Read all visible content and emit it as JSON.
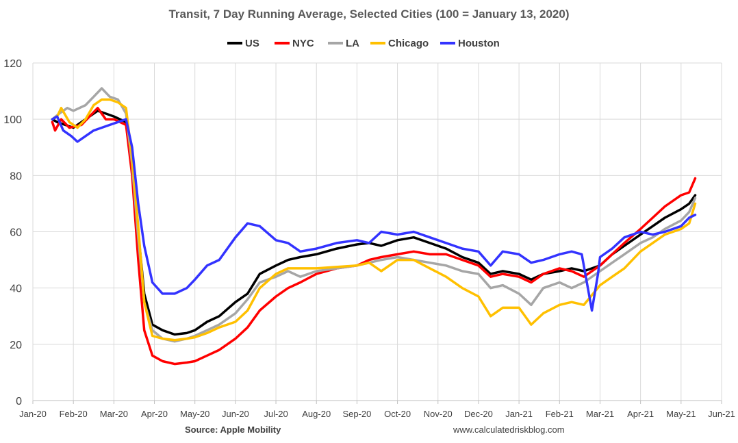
{
  "chart_data": {
    "type": "line",
    "title": "Transit, 7 Day Running Average, Selected Cities (100 = January 13, 2020)",
    "ylim": [
      0,
      120
    ],
    "yticks": [
      0,
      20,
      40,
      60,
      80,
      100,
      120
    ],
    "xlim": [
      0,
      17
    ],
    "xtick_labels": [
      "Jan-20",
      "Feb-20",
      "Mar-20",
      "Apr-20",
      "May-20",
      "Jun-20",
      "Jul-20",
      "Aug-20",
      "Sep-20",
      "Oct-20",
      "Nov-20",
      "Dec-20",
      "Jan-21",
      "Feb-21",
      "Mar-21",
      "Apr-21",
      "May-21",
      "Jun-21"
    ],
    "grid": true,
    "legend_position": "top",
    "source": "Source: Apple Mobility",
    "website": "www.calculatedriskblog.com",
    "series": [
      {
        "name": "US",
        "color": "#000000",
        "points": [
          [
            0.48,
            100
          ],
          [
            0.6,
            99
          ],
          [
            0.8,
            98
          ],
          [
            1.0,
            97
          ],
          [
            1.3,
            100
          ],
          [
            1.6,
            103
          ],
          [
            1.8,
            102
          ],
          [
            2.0,
            101
          ],
          [
            2.3,
            99
          ],
          [
            2.45,
            85
          ],
          [
            2.6,
            60
          ],
          [
            2.75,
            38
          ],
          [
            2.95,
            27
          ],
          [
            3.2,
            25
          ],
          [
            3.5,
            23.5
          ],
          [
            3.8,
            24
          ],
          [
            4.0,
            25
          ],
          [
            4.3,
            28
          ],
          [
            4.6,
            30
          ],
          [
            5.0,
            35
          ],
          [
            5.3,
            38
          ],
          [
            5.6,
            45
          ],
          [
            6.0,
            48
          ],
          [
            6.3,
            50
          ],
          [
            6.6,
            51
          ],
          [
            7.0,
            52
          ],
          [
            7.5,
            54
          ],
          [
            8.0,
            55.5
          ],
          [
            8.3,
            56
          ],
          [
            8.6,
            55
          ],
          [
            9.0,
            57
          ],
          [
            9.4,
            58
          ],
          [
            9.8,
            56
          ],
          [
            10.2,
            54
          ],
          [
            10.6,
            51
          ],
          [
            11.0,
            49
          ],
          [
            11.3,
            45
          ],
          [
            11.6,
            46
          ],
          [
            12.0,
            45
          ],
          [
            12.3,
            43
          ],
          [
            12.6,
            45
          ],
          [
            13.0,
            46
          ],
          [
            13.3,
            47
          ],
          [
            13.6,
            46
          ],
          [
            14.0,
            48
          ],
          [
            14.3,
            52
          ],
          [
            14.6,
            55
          ],
          [
            15.0,
            59
          ],
          [
            15.3,
            62
          ],
          [
            15.6,
            65
          ],
          [
            16.0,
            68
          ],
          [
            16.2,
            70
          ],
          [
            16.35,
            73
          ]
        ]
      },
      {
        "name": "NYC",
        "color": "#ff0000",
        "points": [
          [
            0.48,
            99
          ],
          [
            0.55,
            96
          ],
          [
            0.7,
            100
          ],
          [
            0.9,
            97
          ],
          [
            1.2,
            98
          ],
          [
            1.4,
            101
          ],
          [
            1.6,
            104
          ],
          [
            1.8,
            100
          ],
          [
            2.0,
            100
          ],
          [
            2.3,
            98
          ],
          [
            2.45,
            80
          ],
          [
            2.6,
            50
          ],
          [
            2.75,
            25
          ],
          [
            2.95,
            16
          ],
          [
            3.2,
            14
          ],
          [
            3.5,
            13
          ],
          [
            3.8,
            13.5
          ],
          [
            4.0,
            14
          ],
          [
            4.3,
            16
          ],
          [
            4.6,
            18
          ],
          [
            5.0,
            22
          ],
          [
            5.3,
            26
          ],
          [
            5.6,
            32
          ],
          [
            6.0,
            37
          ],
          [
            6.3,
            40
          ],
          [
            6.6,
            42
          ],
          [
            7.0,
            45
          ],
          [
            7.5,
            47
          ],
          [
            8.0,
            48
          ],
          [
            8.3,
            50
          ],
          [
            8.6,
            51
          ],
          [
            9.0,
            52
          ],
          [
            9.4,
            53
          ],
          [
            9.8,
            52
          ],
          [
            10.2,
            52
          ],
          [
            10.6,
            50
          ],
          [
            11.0,
            48
          ],
          [
            11.3,
            44
          ],
          [
            11.6,
            45
          ],
          [
            12.0,
            44
          ],
          [
            12.3,
            42
          ],
          [
            12.6,
            45
          ],
          [
            13.0,
            47
          ],
          [
            13.3,
            46
          ],
          [
            13.6,
            44
          ],
          [
            14.0,
            48
          ],
          [
            14.3,
            52
          ],
          [
            14.6,
            56
          ],
          [
            15.0,
            61
          ],
          [
            15.3,
            65
          ],
          [
            15.6,
            69
          ],
          [
            16.0,
            73
          ],
          [
            16.2,
            74
          ],
          [
            16.35,
            79
          ]
        ]
      },
      {
        "name": "LA",
        "color": "#a6a6a6",
        "points": [
          [
            0.48,
            100
          ],
          [
            0.65,
            102
          ],
          [
            0.85,
            104
          ],
          [
            1.0,
            103
          ],
          [
            1.3,
            105
          ],
          [
            1.5,
            108
          ],
          [
            1.7,
            111
          ],
          [
            1.9,
            108
          ],
          [
            2.1,
            107
          ],
          [
            2.3,
            102
          ],
          [
            2.45,
            84
          ],
          [
            2.6,
            58
          ],
          [
            2.75,
            35
          ],
          [
            2.95,
            25
          ],
          [
            3.2,
            22
          ],
          [
            3.5,
            21
          ],
          [
            3.8,
            22
          ],
          [
            4.0,
            23
          ],
          [
            4.3,
            25
          ],
          [
            4.6,
            27
          ],
          [
            5.0,
            31
          ],
          [
            5.3,
            36
          ],
          [
            5.6,
            42
          ],
          [
            6.0,
            44
          ],
          [
            6.3,
            46
          ],
          [
            6.6,
            44
          ],
          [
            7.0,
            46
          ],
          [
            7.5,
            47
          ],
          [
            8.0,
            48
          ],
          [
            8.3,
            49
          ],
          [
            8.6,
            50
          ],
          [
            9.0,
            51
          ],
          [
            9.4,
            50
          ],
          [
            9.8,
            49
          ],
          [
            10.2,
            48
          ],
          [
            10.6,
            46
          ],
          [
            11.0,
            45
          ],
          [
            11.3,
            40
          ],
          [
            11.6,
            41
          ],
          [
            12.0,
            38
          ],
          [
            12.3,
            34
          ],
          [
            12.6,
            40
          ],
          [
            13.0,
            42
          ],
          [
            13.3,
            40
          ],
          [
            13.6,
            42
          ],
          [
            14.0,
            46
          ],
          [
            14.3,
            49
          ],
          [
            14.6,
            52
          ],
          [
            15.0,
            56
          ],
          [
            15.3,
            58
          ],
          [
            15.6,
            61
          ],
          [
            16.0,
            64
          ],
          [
            16.2,
            67
          ],
          [
            16.35,
            72
          ]
        ]
      },
      {
        "name": "Chicago",
        "color": "#ffc000",
        "points": [
          [
            0.48,
            100
          ],
          [
            0.6,
            101
          ],
          [
            0.7,
            104
          ],
          [
            0.9,
            99
          ],
          [
            1.1,
            97
          ],
          [
            1.3,
            100
          ],
          [
            1.5,
            105
          ],
          [
            1.7,
            107
          ],
          [
            1.9,
            107
          ],
          [
            2.1,
            106
          ],
          [
            2.3,
            104
          ],
          [
            2.45,
            86
          ],
          [
            2.6,
            62
          ],
          [
            2.75,
            35
          ],
          [
            2.95,
            23
          ],
          [
            3.2,
            22
          ],
          [
            3.5,
            21.5
          ],
          [
            3.8,
            22
          ],
          [
            4.0,
            22.5
          ],
          [
            4.3,
            24
          ],
          [
            4.6,
            26
          ],
          [
            5.0,
            28
          ],
          [
            5.3,
            32
          ],
          [
            5.6,
            40
          ],
          [
            6.0,
            45
          ],
          [
            6.3,
            47
          ],
          [
            6.6,
            47
          ],
          [
            7.0,
            47
          ],
          [
            7.5,
            47.5
          ],
          [
            8.0,
            48
          ],
          [
            8.3,
            49
          ],
          [
            8.6,
            46
          ],
          [
            9.0,
            50
          ],
          [
            9.4,
            50
          ],
          [
            9.8,
            47
          ],
          [
            10.2,
            44
          ],
          [
            10.6,
            40
          ],
          [
            11.0,
            37
          ],
          [
            11.3,
            30
          ],
          [
            11.6,
            33
          ],
          [
            12.0,
            33
          ],
          [
            12.3,
            27
          ],
          [
            12.6,
            31
          ],
          [
            13.0,
            34
          ],
          [
            13.3,
            35
          ],
          [
            13.6,
            34
          ],
          [
            14.0,
            41
          ],
          [
            14.3,
            44
          ],
          [
            14.6,
            47
          ],
          [
            15.0,
            53
          ],
          [
            15.3,
            56
          ],
          [
            15.6,
            59
          ],
          [
            16.0,
            61
          ],
          [
            16.2,
            63
          ],
          [
            16.35,
            70
          ]
        ]
      },
      {
        "name": "Houston",
        "color": "#3333ff",
        "points": [
          [
            0.48,
            100
          ],
          [
            0.6,
            101
          ],
          [
            0.75,
            96
          ],
          [
            0.95,
            94
          ],
          [
            1.1,
            92
          ],
          [
            1.3,
            94
          ],
          [
            1.5,
            96
          ],
          [
            1.7,
            97
          ],
          [
            1.9,
            98
          ],
          [
            2.1,
            99
          ],
          [
            2.3,
            100
          ],
          [
            2.45,
            90
          ],
          [
            2.6,
            70
          ],
          [
            2.75,
            55
          ],
          [
            2.95,
            42
          ],
          [
            3.2,
            38
          ],
          [
            3.5,
            38
          ],
          [
            3.8,
            40
          ],
          [
            4.0,
            43
          ],
          [
            4.3,
            48
          ],
          [
            4.6,
            50
          ],
          [
            5.0,
            58
          ],
          [
            5.3,
            63
          ],
          [
            5.6,
            62
          ],
          [
            6.0,
            57
          ],
          [
            6.3,
            56
          ],
          [
            6.6,
            53
          ],
          [
            7.0,
            54
          ],
          [
            7.5,
            56
          ],
          [
            8.0,
            57
          ],
          [
            8.3,
            56
          ],
          [
            8.6,
            60
          ],
          [
            9.0,
            59
          ],
          [
            9.4,
            60
          ],
          [
            9.8,
            58
          ],
          [
            10.2,
            56
          ],
          [
            10.6,
            54
          ],
          [
            11.0,
            53
          ],
          [
            11.3,
            48
          ],
          [
            11.6,
            53
          ],
          [
            12.0,
            52
          ],
          [
            12.3,
            49
          ],
          [
            12.6,
            50
          ],
          [
            13.0,
            52
          ],
          [
            13.3,
            53
          ],
          [
            13.55,
            52
          ],
          [
            13.7,
            40
          ],
          [
            13.8,
            32
          ],
          [
            13.95,
            45
          ],
          [
            14.0,
            51
          ],
          [
            14.3,
            54
          ],
          [
            14.6,
            58
          ],
          [
            15.0,
            60
          ],
          [
            15.3,
            59
          ],
          [
            15.6,
            60
          ],
          [
            16.0,
            62
          ],
          [
            16.2,
            65
          ],
          [
            16.35,
            66
          ]
        ]
      }
    ]
  }
}
